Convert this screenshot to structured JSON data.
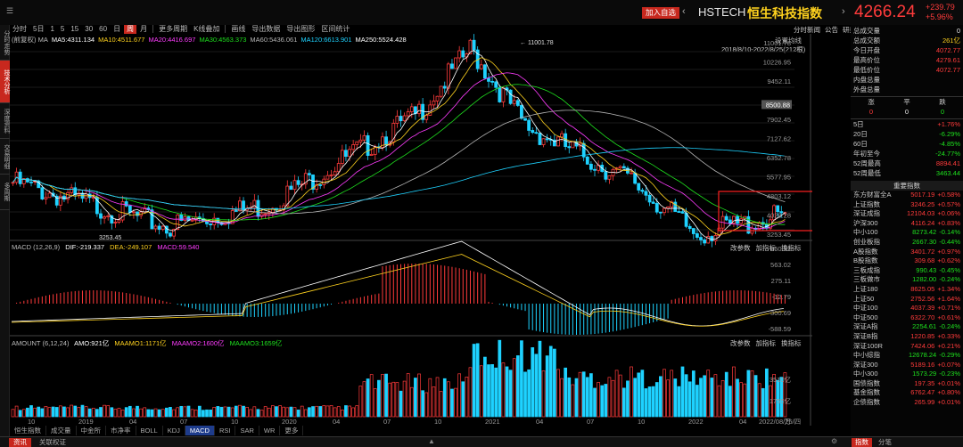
{
  "header": {
    "add_watchlist": "加入自选",
    "code": "HSTECH",
    "name": "恒生科技指数",
    "price": "4266.24",
    "change": "+239.79",
    "change_pct": "+5.96%"
  },
  "periods": [
    "分时",
    "5日",
    "1",
    "5",
    "15",
    "30",
    "60",
    "日",
    "周",
    "月",
    "更多周期",
    "K线叠加",
    "画线",
    "导出数据",
    "导出图形",
    "区间统计"
  ],
  "active_period": "周",
  "left_tabs": [
    "分时走势",
    "技术分析",
    "深度资料",
    "交易明细",
    "多周期"
  ],
  "main_chart": {
    "label_left": "(前复权) MA",
    "ma": [
      {
        "t": "MA5:4311.134",
        "c": "#ffffff"
      },
      {
        "t": "MA10:4511.677",
        "c": "#ffd21e"
      },
      {
        "t": "MA20:4416.697",
        "c": "#ff3cff"
      },
      {
        "t": "MA30:4563.373",
        "c": "#1ee01e"
      },
      {
        "t": "MA60:5436.061",
        "c": "#b4b4b4"
      },
      {
        "t": "MA120:6613.901",
        "c": "#1ed2ff"
      },
      {
        "t": "MA250:5524.428",
        "c": "#ffffff"
      }
    ],
    "settings": "设置均线",
    "date_range": "2018/8/10-2022/8/25(212根)",
    "nav_icons": [
      "分时新闻",
      "公告",
      "研报"
    ],
    "y_ticks": [
      "11001.78",
      "10226.95",
      "9452.11",
      "8500.88",
      "7902.45",
      "7127.62",
      "6352.78",
      "5577.95",
      "4803.12",
      "4028.28",
      "3253.45"
    ],
    "max_label": "11001.78",
    "min_label": "3253.45",
    "cursor_price": "8500.88"
  },
  "macd": {
    "title": "MACD (12,26,9)",
    "dif": "DIF:-219.337",
    "dea": "DEA:-249.107",
    "macd": "MACD:59.540",
    "tools": [
      "改参数",
      "加指标",
      "换指标"
    ],
    "y_ticks": [
      "850.92",
      "563.02",
      "275.11",
      "-12.79",
      "-300.69",
      "-588.59"
    ]
  },
  "amount": {
    "title": "AMOUNT (6,12,24)",
    "amo": "AMO:921亿",
    "m1": "MAAMO1:1171亿",
    "m2": "MAAMO2:1600亿",
    "m3": "MAAMO3:1659亿",
    "tools": [
      "改参数",
      "加指标",
      "换指标"
    ],
    "y_ticks": [
      "3510亿",
      "1755亿",
      "万"
    ]
  },
  "x_axis": [
    "10",
    "2019",
    "04",
    "07",
    "10",
    "2020",
    "04",
    "07",
    "10",
    "2021",
    "04",
    "07",
    "10",
    "2022",
    "04",
    "2022/08/25/四"
  ],
  "bottom_tabs": [
    "恒生指数",
    "成交量",
    "中金所",
    "市净率",
    "BOLL",
    "KDJ",
    "MACD",
    "RSI",
    "SAR",
    "WR",
    "更多"
  ],
  "active_bottom": "MACD",
  "status_tabs": [
    "资讯",
    "关联权证"
  ],
  "right_panel": {
    "stats": [
      {
        "k": "总成交量",
        "v": "0",
        "c": "white"
      },
      {
        "k": "总成交额",
        "v": "261亿",
        "c": "yellow"
      },
      {
        "k": "今日开盘",
        "v": "4072.77",
        "c": "red"
      },
      {
        "k": "最高价位",
        "v": "4279.61",
        "c": "red"
      },
      {
        "k": "最低价位",
        "v": "4072.77",
        "c": "red"
      },
      {
        "k": "内盘总量",
        "v": "",
        "c": "white"
      },
      {
        "k": "外盘总量",
        "v": "",
        "c": "white"
      }
    ],
    "rise_flat_fall": {
      "h": [
        "涨",
        "平",
        "跌"
      ],
      "v": [
        "0",
        "0",
        "0"
      ]
    },
    "periods": [
      {
        "k": "5日",
        "v": "+1.76%",
        "c": "red"
      },
      {
        "k": "20日",
        "v": "-6.29%",
        "c": "green"
      },
      {
        "k": "60日",
        "v": "-4.85%",
        "c": "green"
      },
      {
        "k": "年初至今",
        "v": "-24.77%",
        "c": "green"
      },
      {
        "k": "52周最高",
        "v": "8894.41",
        "c": "red"
      },
      {
        "k": "52周最低",
        "v": "3463.44",
        "c": "green"
      }
    ],
    "index_header": "重要指数",
    "indices": [
      {
        "k": "东方财富全A",
        "v": "5017.19",
        "p": "+0.58%",
        "c": "red"
      },
      {
        "k": "上证指数",
        "v": "3246.25",
        "p": "+0.57%",
        "c": "red"
      },
      {
        "k": "深证成指",
        "v": "12104.03",
        "p": "+0.06%",
        "c": "red"
      },
      {
        "k": "沪深300",
        "v": "4116.24",
        "p": "+0.83%",
        "c": "red"
      },
      {
        "k": "中小100",
        "v": "8273.42",
        "p": "-0.14%",
        "c": "green"
      },
      {
        "k": "创业板指",
        "v": "2667.30",
        "p": "-0.44%",
        "c": "green"
      },
      {
        "k": "A股指数",
        "v": "3401.72",
        "p": "+0.97%",
        "c": "red"
      },
      {
        "k": "B股指数",
        "v": "309.68",
        "p": "+0.62%",
        "c": "red"
      },
      {
        "k": "三板成指",
        "v": "990.43",
        "p": "-0.45%",
        "c": "green"
      },
      {
        "k": "三板做市",
        "v": "1282.00",
        "p": "-0.24%",
        "c": "green"
      },
      {
        "k": "上证180",
        "v": "8625.05",
        "p": "+1.34%",
        "c": "red"
      },
      {
        "k": "上证50",
        "v": "2752.56",
        "p": "+1.64%",
        "c": "red"
      },
      {
        "k": "中证100",
        "v": "4037.39",
        "p": "+0.71%",
        "c": "red"
      },
      {
        "k": "中证500",
        "v": "6322.70",
        "p": "+0.61%",
        "c": "red"
      },
      {
        "k": "深证A指",
        "v": "2254.61",
        "p": "-0.24%",
        "c": "green"
      },
      {
        "k": "深证B指",
        "v": "1220.85",
        "p": "+0.33%",
        "c": "red"
      },
      {
        "k": "深证100R",
        "v": "7424.06",
        "p": "+0.21%",
        "c": "red"
      },
      {
        "k": "中小综指",
        "v": "12678.24",
        "p": "-0.29%",
        "c": "green"
      },
      {
        "k": "深证300",
        "v": "5189.16",
        "p": "+0.07%",
        "c": "red"
      },
      {
        "k": "中小300",
        "v": "1573.29",
        "p": "-0.23%",
        "c": "green"
      },
      {
        "k": "国债指数",
        "v": "197.35",
        "p": "+0.01%",
        "c": "red"
      },
      {
        "k": "基金指数",
        "v": "6762.47",
        "p": "+0.80%",
        "c": "red"
      },
      {
        "k": "企债指数",
        "v": "265.99",
        "p": "+0.01%",
        "c": "red"
      }
    ],
    "tabs": [
      "指数",
      "分笔"
    ]
  },
  "colors": {
    "up": "#ff3b3b",
    "down": "#1ed2ff",
    "bg": "#000000",
    "accent": "#c8281e"
  }
}
